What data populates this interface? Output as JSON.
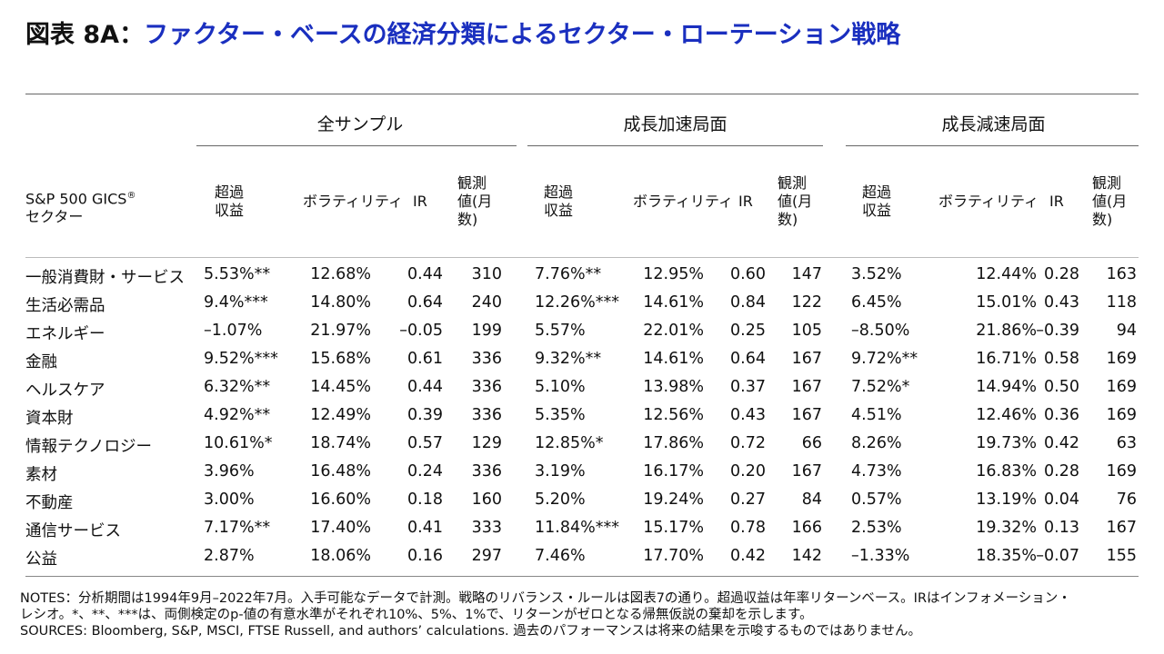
{
  "title": {
    "label": "図表 8A：",
    "text": "ファクター・ベースの経済分類によるセクター・ローテーション戦略"
  },
  "groups": [
    "全サンプル",
    "成長加速局面",
    "成長減速局面"
  ],
  "sector_header": {
    "line1": "S&P 500 GICS",
    "reg": "®",
    "line2": "セクター"
  },
  "col_headers": {
    "excess": [
      "超過",
      "収益"
    ],
    "vol": "ボラティリティ",
    "ir": "IR",
    "obs": [
      "観測",
      "値(月",
      "数)"
    ]
  },
  "rows": [
    {
      "sector": "一般消費財・サービス",
      "v": [
        "5.53%**",
        "12.68%",
        "0.44",
        "310",
        "7.76%**",
        "12.95%",
        "0.60",
        "147",
        "3.52%",
        "12.44%",
        "0.28",
        "163"
      ]
    },
    {
      "sector": "生活必需品",
      "v": [
        "9.4%***",
        "14.80%",
        "0.64",
        "240",
        "12.26%***",
        "14.61%",
        "0.84",
        "122",
        "6.45%",
        "15.01%",
        "0.43",
        "118"
      ]
    },
    {
      "sector": "エネルギー",
      "v": [
        "–1.07%",
        "21.97%",
        "–0.05",
        "199",
        "5.57%",
        "22.01%",
        "0.25",
        "105",
        "–8.50%",
        "21.86%",
        "–0.39",
        "94"
      ]
    },
    {
      "sector": "金融",
      "v": [
        "9.52%***",
        "15.68%",
        "0.61",
        "336",
        "9.32%**",
        "14.61%",
        "0.64",
        "167",
        "9.72%**",
        "16.71%",
        "0.58",
        "169"
      ]
    },
    {
      "sector": "ヘルスケア",
      "v": [
        "6.32%**",
        "14.45%",
        "0.44",
        "336",
        "5.10%",
        "13.98%",
        "0.37",
        "167",
        "7.52%*",
        "14.94%",
        "0.50",
        "169"
      ]
    },
    {
      "sector": "資本財",
      "v": [
        "4.92%**",
        "12.49%",
        "0.39",
        "336",
        "5.35%",
        "12.56%",
        "0.43",
        "167",
        "4.51%",
        "12.46%",
        "0.36",
        "169"
      ]
    },
    {
      "sector": "情報テクノロジー",
      "v": [
        "10.61%*",
        "18.74%",
        "0.57",
        "129",
        "12.85%*",
        "17.86%",
        "0.72",
        "66",
        "8.26%",
        "19.73%",
        "0.42",
        "63"
      ]
    },
    {
      "sector": "素材",
      "v": [
        "3.96%",
        "16.48%",
        "0.24",
        "336",
        "3.19%",
        "16.17%",
        "0.20",
        "167",
        "4.73%",
        "16.83%",
        "0.28",
        "169"
      ]
    },
    {
      "sector": "不動産",
      "v": [
        "3.00%",
        "16.60%",
        "0.18",
        "160",
        "5.20%",
        "19.24%",
        "0.27",
        "84",
        "0.57%",
        "13.19%",
        "0.04",
        "76"
      ]
    },
    {
      "sector": "通信サービス",
      "v": [
        "7.17%**",
        "17.40%",
        "0.41",
        "333",
        "11.84%***",
        "15.17%",
        "0.78",
        "166",
        "2.53%",
        "19.32%",
        "0.13",
        "167"
      ]
    },
    {
      "sector": "公益",
      "v": [
        "2.87%",
        "18.06%",
        "0.16",
        "297",
        "7.46%",
        "17.70%",
        "0.42",
        "142",
        "–1.33%",
        "18.35%",
        "–0.07",
        "155"
      ]
    }
  ],
  "notes": {
    "line1": "NOTES：分析期間は1994年9月–2022年7月。入手可能なデータで計測。戦略のリバランス・ルールは図表7の通り。超過収益は年率リターンベース。IRはインフォメーション・",
    "line2": "レシオ。*、**、***は、両側検定のp-値の有意水準がそれぞれ10%、5%、1%で、リターンがゼロとなる帰無仮説の棄却を示します。",
    "line3": "SOURCES: Bloomberg, S&P, MSCI, FTSE Russell, and authors’ calculations. 過去のパフォーマンスは将来の結果を示唆するものではありません。"
  }
}
